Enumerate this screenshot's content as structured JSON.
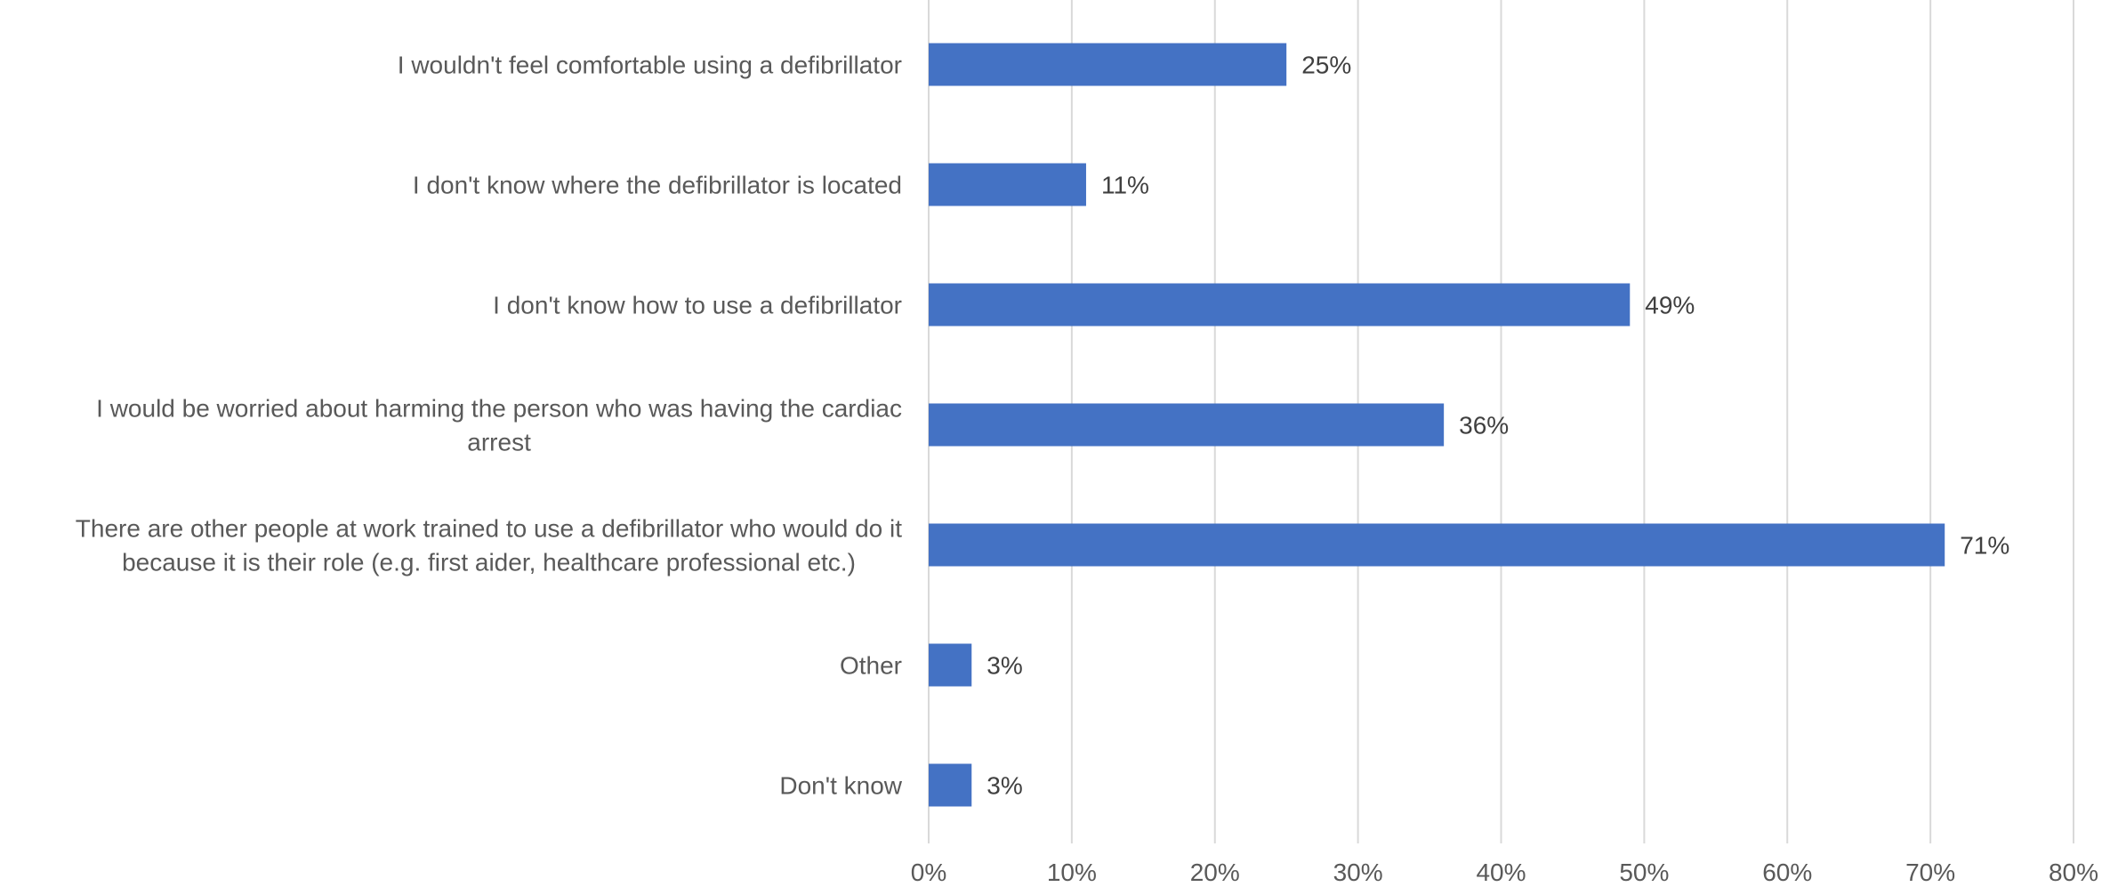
{
  "chart_data": {
    "type": "bar",
    "orientation": "horizontal",
    "categories": [
      "I wouldn't feel comfortable using a defibrillator",
      "I don't know where the defibrillator is located",
      "I don't know how to use a defibrillator",
      "I would be worried about harming the person who was having the cardiac arrest",
      "There are other people at work trained to use a defibrillator who would do it because it is their role (e.g. first aider, healthcare professional etc.)",
      "Other",
      "Don't know"
    ],
    "category_lines": [
      [
        "I wouldn't feel comfortable using a defibrillator"
      ],
      [
        "I don't know where the defibrillator is located"
      ],
      [
        "I don't know how to use a defibrillator"
      ],
      [
        "I would be worried about harming the person who was having the cardiac",
        "arrest"
      ],
      [
        "There are other people at work trained to use a defibrillator who would do it",
        "because it is their role (e.g. first aider, healthcare professional etc.)"
      ],
      [
        "Other"
      ],
      [
        "Don't know"
      ]
    ],
    "values": [
      25,
      11,
      49,
      36,
      71,
      3,
      3
    ],
    "data_labels": [
      "25%",
      "11%",
      "49%",
      "36%",
      "71%",
      "3%",
      "3%"
    ],
    "x_ticks": [
      0,
      10,
      20,
      30,
      40,
      50,
      60,
      70,
      80
    ],
    "x_tick_labels": [
      "0%",
      "10%",
      "20%",
      "30%",
      "40%",
      "50%",
      "60%",
      "70%",
      "80%"
    ],
    "xlim": [
      0,
      80
    ],
    "grid": true,
    "legend": "none",
    "title": "",
    "xlabel": "",
    "ylabel": "",
    "colors": {
      "bar": "#4472C4",
      "grid": "#D9D9D9",
      "label_text": "#595959",
      "value_text": "#404040"
    }
  }
}
